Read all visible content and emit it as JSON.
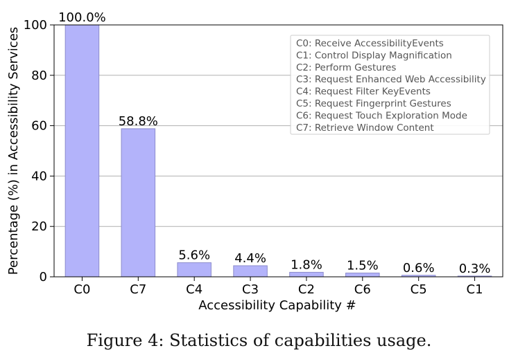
{
  "chart_data": {
    "type": "bar",
    "categories": [
      "C0",
      "C7",
      "C4",
      "C3",
      "C2",
      "C6",
      "C5",
      "C1"
    ],
    "values": [
      100.0,
      58.8,
      5.6,
      4.4,
      1.8,
      1.5,
      0.6,
      0.3
    ],
    "data_labels": [
      "100.0%",
      "58.8%",
      "5.6%",
      "4.4%",
      "1.8%",
      "1.5%",
      "0.6%",
      "0.3%"
    ],
    "xlabel": "Accessibility Capability #",
    "ylabel": "Percentage (%) in Accessibility Services",
    "ylim": [
      0,
      100
    ],
    "yticks": [
      0,
      20,
      40,
      60,
      80,
      100
    ],
    "grid": "horizontal",
    "legend_placement": "top-right",
    "legend": [
      "C0: Receive AccessibilityEvents",
      "C1: Control Display Magnification",
      "C2: Perform Gestures",
      "C3: Request Enhanced Web Accessibility",
      "C4: Request Filter KeyEvents",
      "C5: Request Fingerprint Gestures",
      "C6: Request Touch Exploration Mode",
      "C7: Retrieve Window Content"
    ],
    "bar_color": "#b3b3fa",
    "bar_edge_color": "#8c8ccc"
  },
  "caption": "Figure 4: Statistics of capabilities usage."
}
